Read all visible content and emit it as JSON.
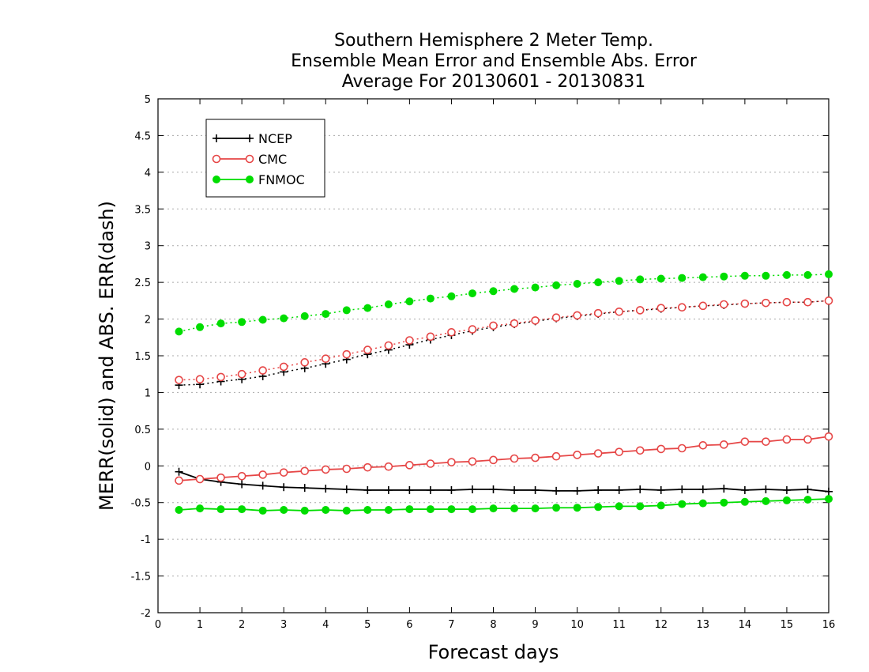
{
  "chart_data": {
    "type": "line",
    "title": [
      "Southern Hemisphere 2 Meter Temp.",
      "Ensemble Mean Error and Ensemble Abs. Error",
      "Average For 20130601 - 20130831"
    ],
    "xlabel": "Forecast days",
    "ylabel": "MERR(solid) and ABS. ERR(dash)",
    "xlim": [
      0,
      16
    ],
    "ylim": [
      -2,
      5
    ],
    "x_ticks": [
      0,
      1,
      2,
      3,
      4,
      5,
      6,
      7,
      8,
      9,
      10,
      11,
      12,
      13,
      14,
      15,
      16
    ],
    "y_ticks": [
      -2,
      -1.5,
      -1,
      -0.5,
      0,
      0.5,
      1,
      1.5,
      2,
      2.5,
      3,
      3.5,
      4,
      4.5,
      5
    ],
    "y_tick_labels": [
      "-2",
      "-1.5",
      "-1",
      "-0.5",
      "0",
      "0.5",
      "1",
      "1.5",
      "2",
      "2.5",
      "3",
      "3.5",
      "4",
      "4.5",
      "5"
    ],
    "grid": "horizontal dotted",
    "legend_position": "top-left",
    "x": [
      0.5,
      1,
      1.5,
      2,
      2.5,
      3,
      3.5,
      4,
      4.5,
      5,
      5.5,
      6,
      6.5,
      7,
      7.5,
      8,
      8.5,
      9,
      9.5,
      10,
      10.5,
      11,
      11.5,
      12,
      12.5,
      13,
      13.5,
      14,
      14.5,
      15,
      15.5,
      16
    ],
    "series": [
      {
        "name": "NCEP",
        "color": "#000000",
        "marker": "plus",
        "merr": [
          -0.08,
          -0.18,
          -0.22,
          -0.25,
          -0.27,
          -0.29,
          -0.3,
          -0.31,
          -0.32,
          -0.33,
          -0.33,
          -0.33,
          -0.33,
          -0.33,
          -0.32,
          -0.32,
          -0.33,
          -0.33,
          -0.34,
          -0.34,
          -0.33,
          -0.33,
          -0.32,
          -0.33,
          -0.32,
          -0.32,
          -0.31,
          -0.33,
          -0.32,
          -0.33,
          -0.32,
          -0.35
        ],
        "abs_err": [
          1.1,
          1.11,
          1.15,
          1.18,
          1.22,
          1.28,
          1.33,
          1.39,
          1.45,
          1.52,
          1.58,
          1.65,
          1.72,
          1.78,
          1.84,
          1.89,
          1.93,
          1.97,
          2.01,
          2.04,
          2.07,
          2.1,
          2.12,
          2.14,
          2.16,
          2.18,
          2.19,
          2.21,
          2.22,
          2.23,
          2.23,
          2.25
        ]
      },
      {
        "name": "CMC",
        "color": "#e64646",
        "marker": "open-circle",
        "merr": [
          -0.2,
          -0.18,
          -0.16,
          -0.14,
          -0.12,
          -0.09,
          -0.07,
          -0.05,
          -0.04,
          -0.02,
          -0.01,
          0.01,
          0.03,
          0.05,
          0.06,
          0.08,
          0.1,
          0.11,
          0.13,
          0.15,
          0.17,
          0.19,
          0.21,
          0.23,
          0.24,
          0.28,
          0.29,
          0.33,
          0.33,
          0.36,
          0.36,
          0.4
        ],
        "abs_err": [
          1.17,
          1.18,
          1.21,
          1.25,
          1.3,
          1.35,
          1.41,
          1.46,
          1.52,
          1.58,
          1.64,
          1.71,
          1.76,
          1.82,
          1.86,
          1.91,
          1.94,
          1.98,
          2.02,
          2.05,
          2.08,
          2.1,
          2.12,
          2.15,
          2.16,
          2.18,
          2.2,
          2.21,
          2.22,
          2.23,
          2.23,
          2.25
        ]
      },
      {
        "name": "FNMOC",
        "color": "#00dd00",
        "marker": "filled-circle",
        "merr": [
          -0.6,
          -0.58,
          -0.59,
          -0.59,
          -0.61,
          -0.6,
          -0.61,
          -0.6,
          -0.61,
          -0.6,
          -0.6,
          -0.59,
          -0.59,
          -0.59,
          -0.59,
          -0.58,
          -0.58,
          -0.58,
          -0.57,
          -0.57,
          -0.56,
          -0.55,
          -0.55,
          -0.54,
          -0.52,
          -0.51,
          -0.5,
          -0.49,
          -0.48,
          -0.47,
          -0.46,
          -0.45
        ],
        "abs_err": [
          1.83,
          1.89,
          1.94,
          1.96,
          1.99,
          2.01,
          2.04,
          2.07,
          2.12,
          2.15,
          2.2,
          2.24,
          2.28,
          2.31,
          2.35,
          2.38,
          2.41,
          2.43,
          2.46,
          2.48,
          2.5,
          2.52,
          2.54,
          2.55,
          2.56,
          2.57,
          2.58,
          2.59,
          2.59,
          2.6,
          2.6,
          2.61
        ]
      }
    ]
  }
}
